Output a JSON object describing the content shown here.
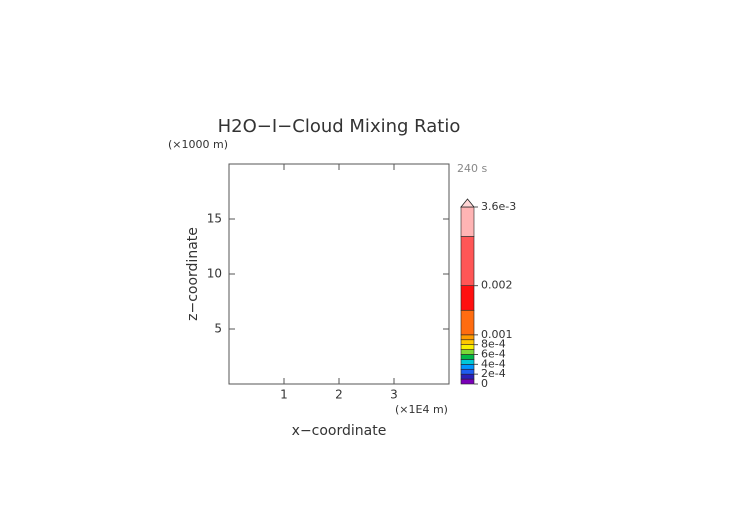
{
  "chart_data": {
    "type": "contour",
    "title": "H2O−I−Cloud Mixing Ratio",
    "y_unit": "(×1000 m)",
    "time_label": "240 s",
    "xlabel": "x−coordinate",
    "ylabel": "z−coordinate",
    "x_unit": "(×1E4 m)",
    "xlim": [
      0,
      4
    ],
    "xticks": [
      1,
      2,
      3
    ],
    "ylim": [
      0,
      20
    ],
    "yticks": [
      5,
      10,
      15
    ],
    "colorbar": {
      "lim": [
        0,
        0.0036
      ],
      "levels": [
        0,
        0.0001,
        0.0002,
        0.0003,
        0.0004,
        0.0005,
        0.0006,
        0.0007,
        0.0008,
        0.0009,
        0.001,
        0.0015,
        0.002,
        0.003,
        0.0036
      ],
      "colors": [
        "#7a00b8",
        "#2a1fb8",
        "#1e5cf0",
        "#0096ff",
        "#00c8d8",
        "#00b848",
        "#7ad838",
        "#f8f000",
        "#ffc800",
        "#ff9c00",
        "#ff6c10",
        "#ff1010",
        "#ff5656",
        "#ffb4b4"
      ],
      "extend_color": "#ffd6d6",
      "ticks": [
        0,
        {
          "value": 0.0002,
          "label": "2e-4"
        },
        {
          "value": 0.0004,
          "label": "4e-4"
        },
        {
          "value": 0.0006,
          "label": "6e-4"
        },
        {
          "value": 0.0008,
          "label": "8e-4"
        },
        0.001,
        0.002,
        {
          "value": 0.0036,
          "label": "3.6e-3"
        }
      ]
    }
  }
}
